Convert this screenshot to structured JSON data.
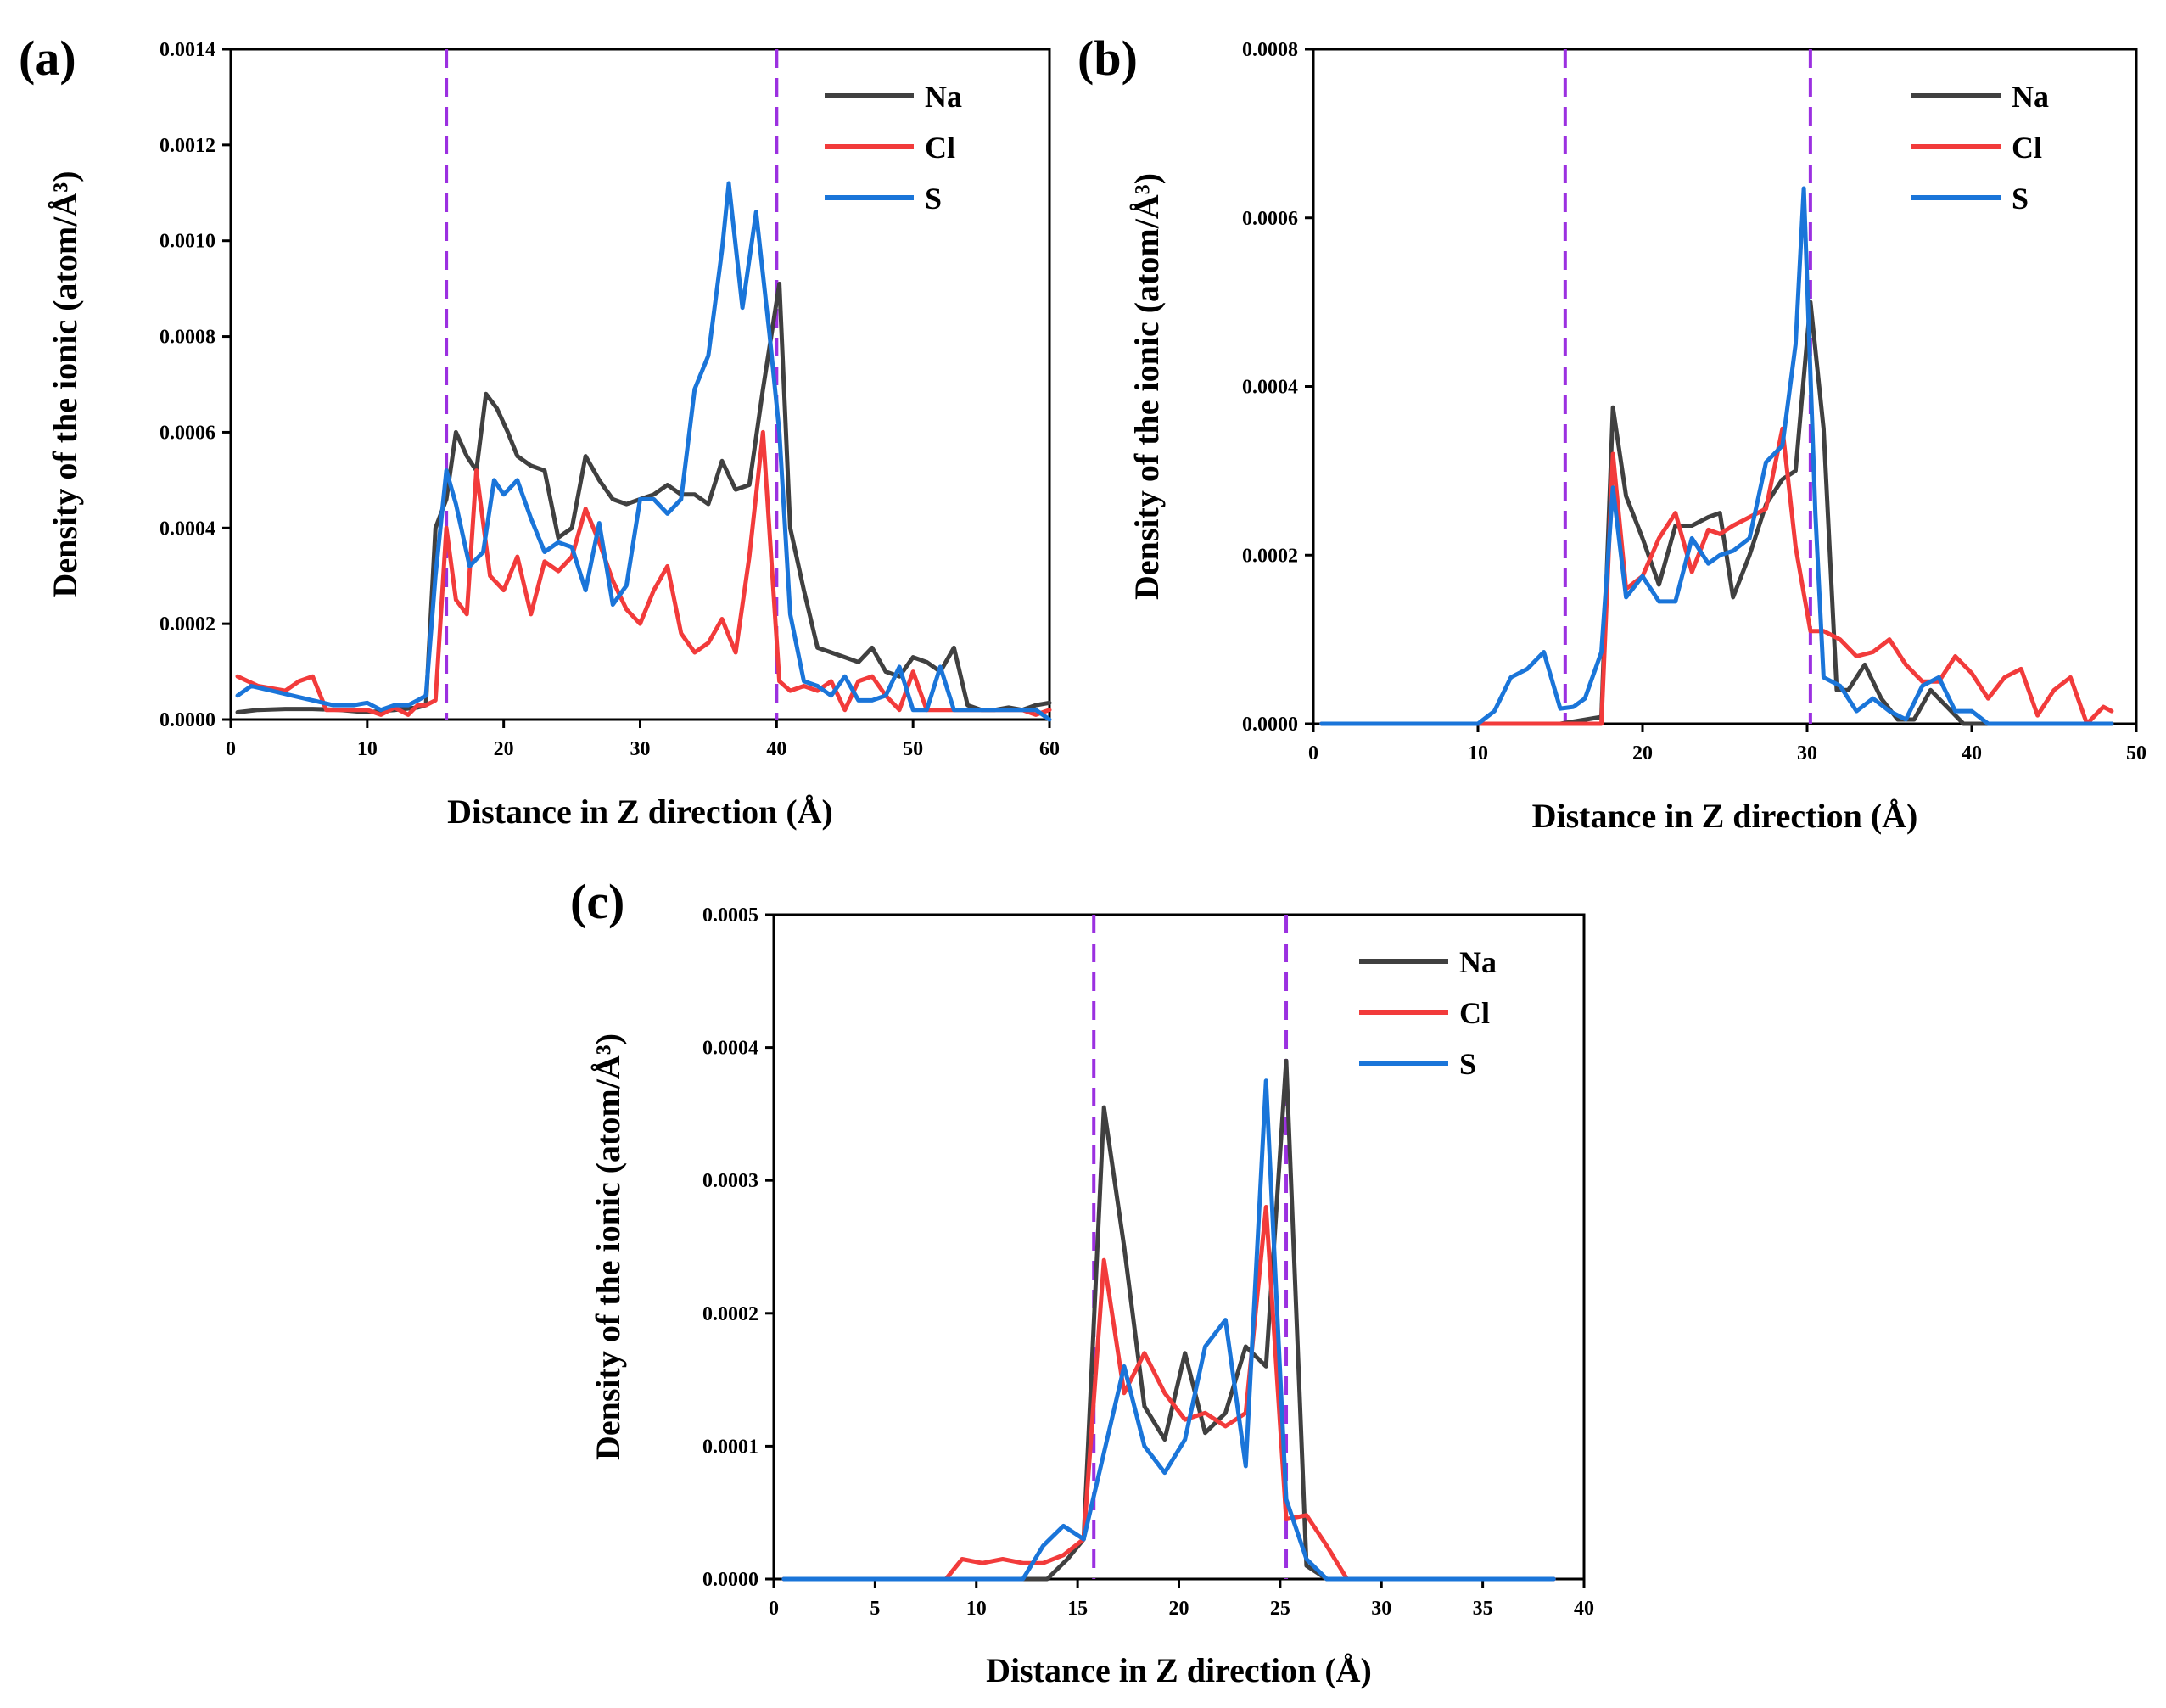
{
  "colors": {
    "Na": "#404040",
    "Cl": "#f23b3b",
    "S": "#1a75d9",
    "interface": "#9b30e0"
  },
  "chart_data": [
    {
      "type": "line",
      "panel_label": "(a)",
      "xlabel": "Distance in Z direction (Å)",
      "ylabel": "Density of the ionic (atom/Å³)",
      "xlim": [
        0,
        60
      ],
      "ylim": [
        0,
        0.0014
      ],
      "xticks": [
        0,
        10,
        20,
        30,
        40,
        50,
        60
      ],
      "yticks": [
        0,
        0.0002,
        0.0004,
        0.0006,
        0.0008,
        0.001,
        0.0012,
        0.0014
      ],
      "ytick_labels": [
        "0.0000",
        "0.0002",
        "0.0004",
        "0.0006",
        "0.0008",
        "0.0010",
        "0.0012",
        "0.0014"
      ],
      "interface_lines": [
        15.8,
        40.0
      ],
      "legend": [
        "Na",
        "Cl",
        "S"
      ],
      "legend_position": "top-right",
      "series": [
        {
          "name": "Na",
          "x": [
            0.5,
            2,
            4,
            6,
            8,
            10,
            12,
            13.7,
            14.3,
            15,
            15.8,
            16.5,
            17.3,
            18,
            18.7,
            19.5,
            20.3,
            21,
            22,
            23,
            24,
            25,
            26,
            27,
            28,
            29,
            30,
            31,
            32,
            33,
            34,
            35,
            36,
            37,
            38,
            39,
            40.2,
            41,
            42,
            43,
            44,
            45,
            46,
            47,
            48,
            49,
            50,
            51,
            52,
            53,
            54,
            55,
            56,
            57,
            58,
            59,
            60
          ],
          "y": [
            1.5e-05,
            2e-05,
            2.2e-05,
            2.2e-05,
            2e-05,
            1.5e-05,
            2e-05,
            2.5e-05,
            3e-05,
            0.0004,
            0.00046,
            0.0006,
            0.00055,
            0.00052,
            0.00068,
            0.00065,
            0.0006,
            0.00055,
            0.00053,
            0.00052,
            0.00038,
            0.0004,
            0.00055,
            0.0005,
            0.00046,
            0.00045,
            0.00046,
            0.00047,
            0.00049,
            0.00047,
            0.00047,
            0.00045,
            0.00054,
            0.00048,
            0.00049,
            0.00069,
            0.00091,
            0.0004,
            0.00027,
            0.00015,
            0.00014,
            0.00013,
            0.00012,
            0.00015,
            0.0001,
            9e-05,
            0.00013,
            0.00012,
            0.0001,
            0.00015,
            3e-05,
            2e-05,
            2e-05,
            2.5e-05,
            2e-05,
            3e-05,
            3.5e-05
          ]
        },
        {
          "name": "Cl",
          "x": [
            0.5,
            2,
            4,
            5,
            6,
            7,
            9,
            10,
            11,
            12,
            13,
            13.7,
            14.3,
            15,
            15.8,
            16.5,
            17.3,
            18,
            19,
            20,
            21,
            22,
            23,
            24,
            25,
            26,
            27,
            28,
            29,
            30,
            31,
            32,
            33,
            34,
            35,
            36,
            37,
            38,
            39,
            40.2,
            41,
            42,
            43,
            44,
            45,
            46,
            47,
            48,
            49,
            50,
            51,
            52,
            53,
            54,
            55,
            56,
            57,
            58,
            59,
            60
          ],
          "y": [
            9e-05,
            7e-05,
            6e-05,
            8e-05,
            9e-05,
            2e-05,
            2e-05,
            2e-05,
            1e-05,
            2.5e-05,
            1e-05,
            3e-05,
            3e-05,
            4e-05,
            0.0004,
            0.00025,
            0.00022,
            0.00052,
            0.0003,
            0.00027,
            0.00034,
            0.00022,
            0.00033,
            0.00031,
            0.00034,
            0.00044,
            0.00037,
            0.00029,
            0.00023,
            0.0002,
            0.00027,
            0.00032,
            0.00018,
            0.00014,
            0.00016,
            0.00021,
            0.00014,
            0.00034,
            0.0006,
            8e-05,
            6e-05,
            7e-05,
            6e-05,
            8e-05,
            2e-05,
            8e-05,
            9e-05,
            5e-05,
            2e-05,
            0.0001,
            2e-05,
            2e-05,
            2e-05,
            2e-05,
            2e-05,
            2e-05,
            2e-05,
            2e-05,
            1e-05,
            2e-05
          ]
        },
        {
          "name": "S",
          "x": [
            0.5,
            1.5,
            3,
            4.5,
            6,
            7.5,
            9,
            10,
            11,
            12,
            13,
            13.7,
            14.3,
            15,
            15.8,
            16.5,
            17.5,
            18.5,
            19.3,
            20,
            21,
            22,
            23,
            24,
            25,
            26,
            27,
            28,
            29,
            30,
            31,
            32,
            33,
            34,
            35,
            36,
            36.5,
            37.5,
            38.5,
            39.5,
            40.2,
            41,
            42,
            43,
            44,
            45,
            46,
            47,
            48,
            49,
            50,
            51,
            52,
            53,
            54,
            55,
            56,
            57,
            58,
            59,
            60
          ],
          "y": [
            5e-05,
            7e-05,
            6e-05,
            5e-05,
            4e-05,
            3e-05,
            3e-05,
            3.5e-05,
            2e-05,
            3e-05,
            3e-05,
            4e-05,
            5e-05,
            0.0003,
            0.00052,
            0.00045,
            0.00032,
            0.00035,
            0.0005,
            0.00047,
            0.0005,
            0.00042,
            0.00035,
            0.00037,
            0.00036,
            0.00027,
            0.00041,
            0.00024,
            0.00028,
            0.00046,
            0.00046,
            0.00043,
            0.00046,
            0.00069,
            0.00076,
            0.00098,
            0.00112,
            0.00086,
            0.00106,
            0.0008,
            0.0006,
            0.00022,
            8e-05,
            7e-05,
            5e-05,
            9e-05,
            4e-05,
            4e-05,
            5e-05,
            0.00011,
            2e-05,
            2e-05,
            0.00011,
            2e-05,
            2e-05,
            2e-05,
            2e-05,
            2e-05,
            2e-05,
            2e-05,
            0
          ]
        }
      ]
    },
    {
      "type": "line",
      "panel_label": "(b)",
      "xlabel": "Distance in Z direction (Å)",
      "ylabel": "Density of the ionic (atom/Å³)",
      "xlim": [
        0,
        50
      ],
      "ylim": [
        0,
        0.0008
      ],
      "xticks": [
        0,
        10,
        20,
        30,
        40,
        50
      ],
      "yticks": [
        0,
        0.0002,
        0.0004,
        0.0006,
        0.0008
      ],
      "ytick_labels": [
        "0.0000",
        "0.0002",
        "0.0004",
        "0.0006",
        "0.0008"
      ],
      "interface_lines": [
        15.3,
        30.2
      ],
      "legend": [
        "Na",
        "Cl",
        "S"
      ],
      "legend_position": "top-right",
      "series": [
        {
          "name": "Na",
          "x": [
            0.5,
            5,
            10,
            15,
            17.5,
            18.2,
            19,
            20,
            21,
            22,
            23,
            24,
            24.7,
            25.5,
            26.5,
            27.5,
            28.5,
            29.3,
            30.2,
            31,
            31.8,
            32.5,
            33.5,
            34.5,
            35.5,
            36.5,
            37.5,
            38.5,
            39.5,
            40.5,
            41.5,
            42.5,
            43.5,
            44.5,
            45.5,
            46.5,
            47.5,
            48.5
          ],
          "y": [
            0,
            0,
            0,
            0,
            8e-06,
            0.000375,
            0.00027,
            0.00022,
            0.000165,
            0.000235,
            0.000235,
            0.000245,
            0.00025,
            0.00015,
            0.0002,
            0.00026,
            0.00029,
            0.0003,
            0.0005,
            0.00035,
            4e-05,
            4e-05,
            7e-05,
            3e-05,
            5e-06,
            5e-06,
            4e-05,
            2e-05,
            0,
            0,
            0,
            0,
            0,
            0,
            0,
            0,
            0,
            0
          ]
        },
        {
          "name": "Cl",
          "x": [
            0.5,
            5,
            10,
            15,
            17.5,
            18.2,
            19,
            20,
            21,
            22,
            23,
            24,
            24.7,
            25.5,
            26.5,
            27.5,
            28.5,
            29.3,
            30.2,
            31,
            32,
            33,
            34,
            35,
            36,
            37,
            38,
            39,
            40,
            41,
            42,
            43,
            44,
            45,
            46,
            47,
            48,
            48.5
          ],
          "y": [
            0,
            0,
            0,
            0,
            0,
            0.00032,
            0.00016,
            0.000175,
            0.00022,
            0.00025,
            0.00018,
            0.00023,
            0.000225,
            0.000235,
            0.000245,
            0.000255,
            0.00035,
            0.00021,
            0.00011,
            0.00011,
            0.0001,
            8e-05,
            8.5e-05,
            0.0001,
            7e-05,
            5e-05,
            5e-05,
            8e-05,
            6e-05,
            3e-05,
            5.5e-05,
            6.5e-05,
            1e-05,
            4e-05,
            5.5e-05,
            0,
            2e-05,
            1.5e-05
          ]
        },
        {
          "name": "S",
          "x": [
            0.5,
            5,
            10,
            11,
            12,
            13,
            14,
            15,
            15.8,
            16.5,
            17.5,
            18.2,
            19,
            20,
            21,
            22,
            23,
            24,
            24.7,
            25.5,
            26.5,
            27.5,
            28.5,
            29.3,
            29.8,
            30.5,
            31,
            32,
            33,
            34,
            35,
            36,
            37,
            38,
            39,
            40,
            41,
            42,
            43,
            44,
            45,
            46,
            47,
            48,
            48.5
          ],
          "y": [
            0,
            0,
            0,
            1.5e-05,
            5.5e-05,
            6.5e-05,
            8.5e-05,
            1.8e-05,
            2e-05,
            3e-05,
            8.5e-05,
            0.00028,
            0.00015,
            0.000175,
            0.000145,
            0.000145,
            0.00022,
            0.00019,
            0.0002,
            0.000205,
            0.00022,
            0.00031,
            0.00033,
            0.00045,
            0.000635,
            0.00025,
            5.5e-05,
            4.5e-05,
            1.5e-05,
            3e-05,
            1.5e-05,
            5e-06,
            4.5e-05,
            5.5e-05,
            1.5e-05,
            1.5e-05,
            0,
            0,
            0,
            0,
            0,
            0,
            0,
            0,
            0
          ]
        }
      ]
    },
    {
      "type": "line",
      "panel_label": "(c)",
      "xlabel": "Distance in Z direction (Å)",
      "ylabel": "Density of the ionic (atom/Å³)",
      "xlim": [
        0,
        40
      ],
      "ylim": [
        0,
        0.0005
      ],
      "xticks": [
        0,
        5,
        10,
        15,
        20,
        25,
        30,
        35,
        40
      ],
      "yticks": [
        0,
        0.0001,
        0.0002,
        0.0003,
        0.0004,
        0.0005
      ],
      "ytick_labels": [
        "0.0000",
        "0.0001",
        "0.0002",
        "0.0003",
        "0.0004",
        "0.0005"
      ],
      "interface_lines": [
        15.8,
        25.3
      ],
      "legend": [
        "Na",
        "Cl",
        "S"
      ],
      "legend_position": "top-right",
      "series": [
        {
          "name": "Na",
          "x": [
            0.5,
            5,
            10,
            12.5,
            13.5,
            14.5,
            15.3,
            16.3,
            17.3,
            18.3,
            19.3,
            20.3,
            21.3,
            22.3,
            23.3,
            24.3,
            25.3,
            26.3,
            27.3,
            30,
            35,
            38.5
          ],
          "y": [
            0,
            0,
            0,
            0,
            0,
            1.5e-05,
            3e-05,
            0.000355,
            0.00025,
            0.00013,
            0.000105,
            0.00017,
            0.00011,
            0.000125,
            0.000175,
            0.00016,
            0.00039,
            1e-05,
            0,
            0,
            0,
            0
          ]
        },
        {
          "name": "Cl",
          "x": [
            0.5,
            5,
            8.5,
            9.3,
            10.3,
            11.3,
            12.3,
            13.3,
            14.3,
            15.3,
            16.3,
            17.3,
            18.3,
            19.3,
            20.3,
            21.3,
            22.3,
            23.3,
            24.3,
            25.3,
            26.3,
            27.3,
            28.3,
            30,
            35,
            38.5
          ],
          "y": [
            0,
            0,
            0,
            1.5e-05,
            1.2e-05,
            1.5e-05,
            1.2e-05,
            1.2e-05,
            1.8e-05,
            3e-05,
            0.00024,
            0.00014,
            0.00017,
            0.00014,
            0.00012,
            0.000125,
            0.000115,
            0.000125,
            0.00028,
            4.5e-05,
            4.8e-05,
            2.5e-05,
            0,
            0,
            0,
            0
          ]
        },
        {
          "name": "S",
          "x": [
            0.5,
            5,
            10,
            12.3,
            13.3,
            14.3,
            15.3,
            16.3,
            17.3,
            18.3,
            19.3,
            20.3,
            21.3,
            22.3,
            23.3,
            24.3,
            25.3,
            26.3,
            27.3,
            30,
            35,
            38.5
          ],
          "y": [
            0,
            0,
            0,
            0,
            2.5e-05,
            4e-05,
            3e-05,
            9.5e-05,
            0.00016,
            0.0001,
            8e-05,
            0.000105,
            0.000175,
            0.000195,
            8.5e-05,
            0.000375,
            6e-05,
            1.5e-05,
            0,
            0,
            0,
            0
          ]
        }
      ]
    }
  ]
}
